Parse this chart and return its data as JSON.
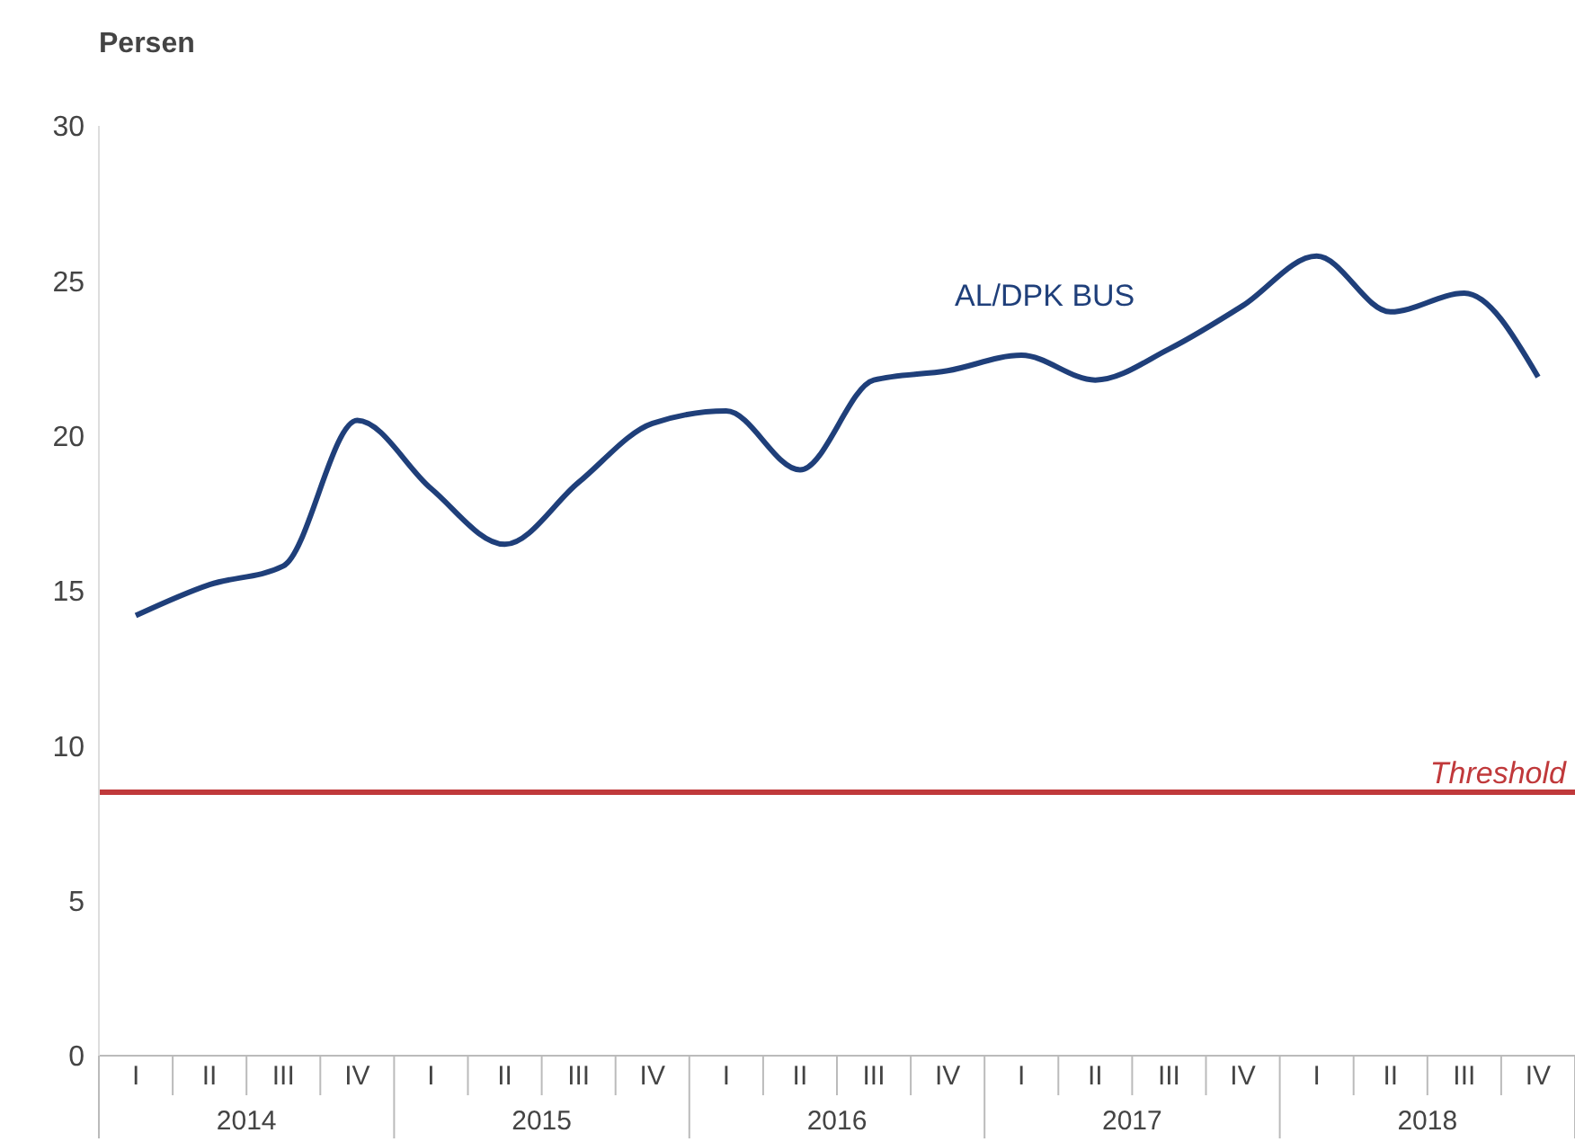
{
  "chart_data": {
    "type": "line",
    "ylabel": "Persen",
    "categories": [
      "I",
      "II",
      "III",
      "IV",
      "I",
      "II",
      "III",
      "IV",
      "I",
      "II",
      "III",
      "IV",
      "I",
      "II",
      "III",
      "IV",
      "I",
      "II",
      "III",
      "IV"
    ],
    "series": [
      {
        "name": "AL/DPK BUS",
        "color": "#1f3f7a",
        "values": [
          14.2,
          15.2,
          15.8,
          20.5,
          18.3,
          16.5,
          18.5,
          20.4,
          20.8,
          18.9,
          21.8,
          22.1,
          22.6,
          21.8,
          22.8,
          24.2,
          25.8,
          24.0,
          24.6,
          21.9
        ]
      }
    ],
    "ylim": [
      0,
      30
    ],
    "yticks": [
      0,
      5,
      10,
      15,
      20,
      25,
      30
    ],
    "grid": false,
    "marker": "none",
    "line_style": "solid",
    "ref_lines": [
      {
        "axis": "y",
        "value": 8.5,
        "label": "Threshold",
        "color": "#c0393b"
      }
    ],
    "annotations": [
      "2014",
      "2015",
      "2016",
      "2017",
      "2018"
    ]
  }
}
